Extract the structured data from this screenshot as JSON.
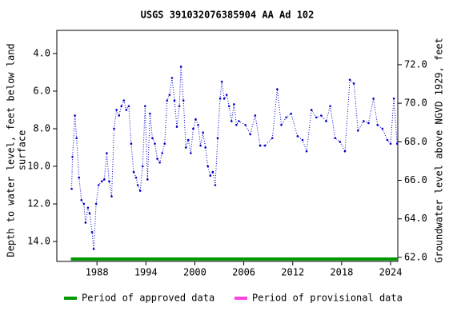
{
  "chart_data": {
    "type": "line",
    "title": "USGS 391032076385904 AA Ad 102",
    "ylabel_lines": [
      "Depth to water level, feet below land",
      "surface"
    ],
    "y2label": "Groundwater level above NGVD 1929, feet",
    "xlim": [
      1983.08,
      2024.88
    ],
    "xticks": [
      1988,
      1994,
      2000,
      2006,
      2012,
      2018,
      2024
    ],
    "ylim": [
      2.77,
      15.06
    ],
    "y_inverted": true,
    "yticks": [
      {
        "value": 4,
        "label": "4.0"
      },
      {
        "value": 6,
        "label": "6.0"
      },
      {
        "value": 8,
        "label": "8.0"
      },
      {
        "value": 10,
        "label": "10.0"
      },
      {
        "value": 12,
        "label": "12.0"
      },
      {
        "value": 14,
        "label": "14.0"
      }
    ],
    "y2lim": [
      73.78,
      61.79
    ],
    "y2ticks": [
      {
        "value": 72,
        "label": "72.0"
      },
      {
        "value": 70,
        "label": "70.0"
      },
      {
        "value": 68,
        "label": "68.0"
      },
      {
        "value": 66,
        "label": "66.0"
      },
      {
        "value": 64,
        "label": "64.0"
      },
      {
        "value": 62,
        "label": "62.0"
      }
    ],
    "series": [
      {
        "color": "#0000cc",
        "x": [
          1984.9,
          1985.0,
          1985.3,
          1985.5,
          1985.8,
          1986.1,
          1986.4,
          1986.6,
          1986.9,
          1987.1,
          1987.4,
          1987.6,
          1987.9,
          1988.2,
          1988.6,
          1988.9,
          1989.2,
          1989.5,
          1989.8,
          1990.1,
          1990.4,
          1990.7,
          1991.0,
          1991.3,
          1991.6,
          1991.9,
          1992.2,
          1992.5,
          1992.8,
          1993.0,
          1993.3,
          1993.6,
          1993.9,
          1994.2,
          1994.5,
          1994.8,
          1995.1,
          1995.4,
          1995.7,
          1996.0,
          1996.3,
          1996.6,
          1996.9,
          1997.2,
          1997.5,
          1997.8,
          1998.1,
          1998.3,
          1998.6,
          1998.9,
          1999.2,
          1999.5,
          1999.8,
          2000.1,
          2000.4,
          2000.7,
          2001.0,
          2001.3,
          2001.6,
          2001.9,
          2002.2,
          2002.5,
          2002.8,
          2003.1,
          2003.3,
          2003.6,
          2003.9,
          2004.2,
          2004.5,
          2004.8,
          2005.1,
          2005.4,
          2006.2,
          2006.8,
          2007.4,
          2008.0,
          2008.6,
          2009.5,
          2010.1,
          2010.6,
          2011.2,
          2011.8,
          2012.6,
          2013.2,
          2013.7,
          2014.3,
          2014.9,
          2015.5,
          2016.1,
          2016.6,
          2017.2,
          2017.8,
          2018.4,
          2019.0,
          2019.5,
          2020.0,
          2020.7,
          2021.3,
          2021.9,
          2022.4,
          2023.0,
          2023.6,
          2024.0,
          2024.4,
          2024.8
        ],
        "values": [
          11.2,
          9.5,
          7.3,
          8.5,
          10.6,
          11.8,
          12.0,
          13.0,
          12.2,
          12.5,
          13.5,
          14.4,
          12.0,
          11.0,
          10.8,
          10.7,
          9.3,
          10.8,
          11.6,
          8.0,
          7.0,
          7.3,
          6.8,
          6.5,
          7.0,
          6.8,
          8.8,
          10.3,
          10.6,
          11.0,
          11.3,
          10.0,
          6.8,
          10.7,
          7.2,
          8.5,
          8.8,
          9.6,
          9.8,
          9.3,
          8.8,
          6.5,
          6.2,
          5.3,
          6.5,
          7.9,
          6.8,
          4.7,
          6.5,
          9.0,
          8.6,
          9.3,
          8.0,
          7.5,
          7.8,
          8.9,
          8.2,
          9.0,
          10.0,
          10.5,
          10.3,
          11.0,
          8.5,
          6.4,
          5.5,
          6.4,
          6.2,
          6.8,
          7.6,
          6.7,
          7.8,
          7.6,
          7.8,
          8.3,
          7.3,
          8.9,
          8.9,
          8.5,
          5.9,
          7.8,
          7.4,
          7.2,
          8.4,
          8.6,
          9.2,
          7.0,
          7.4,
          7.3,
          7.6,
          6.8,
          8.5,
          8.7,
          9.2,
          5.4,
          5.6,
          8.1,
          7.6,
          7.7,
          6.4,
          7.8,
          8.0,
          8.6,
          8.8,
          6.4,
          8.8
        ]
      }
    ],
    "periods": [
      {
        "name": "Period of approved data",
        "color": "#009900",
        "start": 1984.8,
        "end": 2024.8
      },
      {
        "name": "Period of provisional data",
        "color": "#ff44dd"
      }
    ]
  }
}
